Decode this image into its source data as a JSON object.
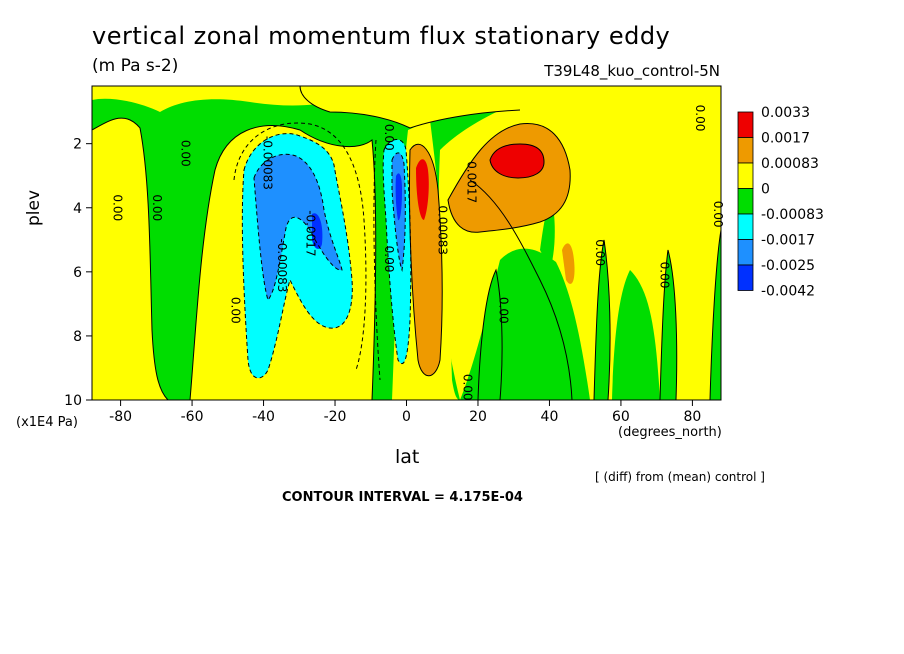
{
  "title": "vertical zonal momentum flux stationary eddy",
  "units": "(m Pa s-2)",
  "run_name": "T39L48_kuo_control-5N",
  "y_units": "(x1E4 Pa)",
  "x_units": "(degrees_north)",
  "diff_note": "[ (diff) from (mean) control ]",
  "contour_interval": "CONTOUR INTERVAL = 4.175E-04",
  "chart_data": {
    "type": "heatmap",
    "title": "vertical zonal momentum flux stationary eddy",
    "subtitle": "(m Pa s-2)",
    "xlabel": "lat",
    "ylabel": "plev",
    "xlim": [
      -88,
      88
    ],
    "ylim": [
      10,
      0.2
    ],
    "x_ticks": [
      -80,
      -60,
      -40,
      -20,
      0,
      20,
      40,
      60,
      80
    ],
    "x_tick_labels": [
      "-80",
      "-60",
      "-40",
      "-20",
      "0",
      "20",
      "40",
      "60",
      "80"
    ],
    "y_ticks": [
      2,
      4,
      6,
      8,
      10
    ],
    "y_tick_labels": [
      "2",
      "4",
      "6",
      "8",
      "10"
    ],
    "colorbar": {
      "levels": [
        "0.0033",
        "0.0017",
        "0.00083",
        "0",
        "-0.00083",
        "-0.0017",
        "-0.0025",
        "-0.0042"
      ],
      "colors": [
        "#ee0000",
        "#ee9a00",
        "#ffff00",
        "#00dd00",
        "#00ffff",
        "#1e90ff",
        "#0030ff"
      ]
    },
    "contour_labels": [
      {
        "text": "0.00",
        "x": -82,
        "y": 4.0
      },
      {
        "text": "0.00",
        "x": -71,
        "y": 4.0
      },
      {
        "text": "0.00",
        "x": -63,
        "y": 2.3
      },
      {
        "text": "-0.00083",
        "x": -40,
        "y": 2.6
      },
      {
        "text": "-0.00083",
        "x": -36,
        "y": 5.8
      },
      {
        "text": "-0.0017",
        "x": -28,
        "y": 4.8
      },
      {
        "text": "0.00",
        "x": -49,
        "y": 7.2
      },
      {
        "text": "0.00",
        "x": -6,
        "y": 5.6
      },
      {
        "text": "0.00",
        "x": -6,
        "y": 1.8
      },
      {
        "text": "0.00083",
        "x": 9,
        "y": 4.7
      },
      {
        "text": "0.0017",
        "x": 17,
        "y": 3.2
      },
      {
        "text": "0.00",
        "x": 16,
        "y": 9.6
      },
      {
        "text": "0.00",
        "x": 26,
        "y": 7.2
      },
      {
        "text": "0.00",
        "x": 53,
        "y": 5.4
      },
      {
        "text": "0.00",
        "x": 71,
        "y": 6.1
      },
      {
        "text": "0.00",
        "x": 81,
        "y": 1.2
      },
      {
        "text": "0.00",
        "x": 86,
        "y": 4.2
      }
    ]
  },
  "colors": {
    "green": "#00dd00",
    "yellow": "#ffff00",
    "orange": "#ee9a00",
    "red": "#ee0000",
    "cyan": "#00ffff",
    "lightblue": "#1e90ff",
    "blue": "#0030ff"
  }
}
